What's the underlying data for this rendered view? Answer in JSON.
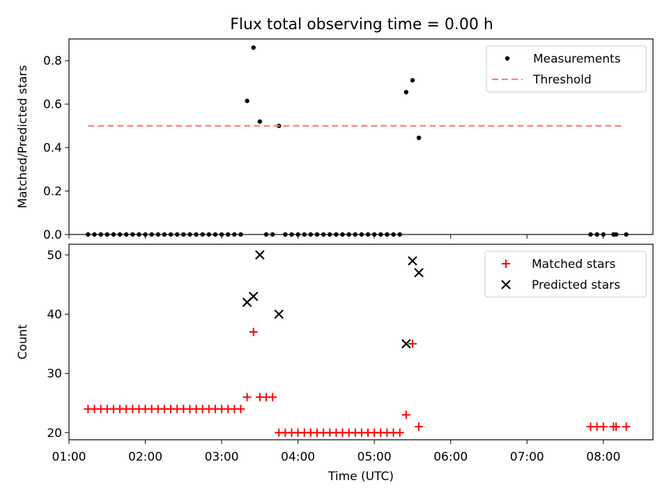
{
  "title": "Flux total observing time = 0.00 h",
  "colors": {
    "measurements": "#000000",
    "threshold": "#ff7f7f",
    "matched": "#ff0000",
    "predicted": "#000000"
  },
  "chart_data": [
    {
      "type": "scatter",
      "ylabel": "Matched/Predicted stars",
      "xlim_hours": [
        1.0,
        8.65
      ],
      "ylim": [
        0,
        0.9
      ],
      "yticks": [
        0.0,
        0.2,
        0.4,
        0.6,
        0.8
      ],
      "ytick_labels": [
        "0.0",
        "0.2",
        "0.4",
        "0.6",
        "0.8"
      ],
      "legend_position": "upper right",
      "series": [
        {
          "name": "Measurements",
          "marker": "dot",
          "points": [
            [
              "01:15",
              0
            ],
            [
              "01:20",
              0
            ],
            [
              "01:25",
              0
            ],
            [
              "01:30",
              0
            ],
            [
              "01:35",
              0
            ],
            [
              "01:40",
              0
            ],
            [
              "01:45",
              0
            ],
            [
              "01:50",
              0
            ],
            [
              "01:55",
              0
            ],
            [
              "02:00",
              0
            ],
            [
              "02:05",
              0
            ],
            [
              "02:10",
              0
            ],
            [
              "02:15",
              0
            ],
            [
              "02:20",
              0
            ],
            [
              "02:25",
              0
            ],
            [
              "02:30",
              0
            ],
            [
              "02:35",
              0
            ],
            [
              "02:40",
              0
            ],
            [
              "02:45",
              0
            ],
            [
              "02:50",
              0
            ],
            [
              "02:55",
              0
            ],
            [
              "03:00",
              0
            ],
            [
              "03:05",
              0
            ],
            [
              "03:10",
              0
            ],
            [
              "03:15",
              0
            ],
            [
              "03:20",
              0.615
            ],
            [
              "03:25",
              0.86
            ],
            [
              "03:30",
              0.52
            ],
            [
              "03:35",
              0
            ],
            [
              "03:40",
              0
            ],
            [
              "03:45",
              0.5
            ],
            [
              "03:50",
              0
            ],
            [
              "03:55",
              0
            ],
            [
              "04:00",
              0
            ],
            [
              "04:05",
              0
            ],
            [
              "04:10",
              0
            ],
            [
              "04:15",
              0
            ],
            [
              "04:20",
              0
            ],
            [
              "04:25",
              0
            ],
            [
              "04:30",
              0
            ],
            [
              "04:35",
              0
            ],
            [
              "04:40",
              0
            ],
            [
              "04:45",
              0
            ],
            [
              "04:50",
              0
            ],
            [
              "04:55",
              0
            ],
            [
              "05:00",
              0
            ],
            [
              "05:05",
              0
            ],
            [
              "05:10",
              0
            ],
            [
              "05:15",
              0
            ],
            [
              "05:20",
              0
            ],
            [
              "05:25",
              0.655
            ],
            [
              "05:30",
              0.71
            ],
            [
              "05:35",
              0.445
            ],
            [
              "07:50",
              0
            ],
            [
              "07:55",
              0
            ],
            [
              "08:00",
              0
            ],
            [
              "08:08",
              0
            ],
            [
              "08:10",
              0
            ],
            [
              "08:18",
              0
            ]
          ]
        },
        {
          "name": "Threshold",
          "style": "dashed",
          "points": [
            [
              "01:15",
              0.5
            ],
            [
              "08:15",
              0.5
            ]
          ]
        }
      ]
    },
    {
      "type": "scatter",
      "xlabel": "Time (UTC)",
      "ylabel": "Count",
      "xlim_hours": [
        1.0,
        8.65
      ],
      "ylim": [
        18.8,
        51.8
      ],
      "yticks": [
        20,
        30,
        40,
        50
      ],
      "ytick_labels": [
        "20",
        "30",
        "40",
        "50"
      ],
      "xticks": [
        "01:00",
        "02:00",
        "03:00",
        "04:00",
        "05:00",
        "06:00",
        "07:00",
        "08:00"
      ],
      "legend_position": "upper right",
      "series": [
        {
          "name": "Matched stars",
          "marker": "plus",
          "points": [
            [
              "01:15",
              24
            ],
            [
              "01:20",
              24
            ],
            [
              "01:25",
              24
            ],
            [
              "01:30",
              24
            ],
            [
              "01:35",
              24
            ],
            [
              "01:40",
              24
            ],
            [
              "01:45",
              24
            ],
            [
              "01:50",
              24
            ],
            [
              "01:55",
              24
            ],
            [
              "02:00",
              24
            ],
            [
              "02:05",
              24
            ],
            [
              "02:10",
              24
            ],
            [
              "02:15",
              24
            ],
            [
              "02:20",
              24
            ],
            [
              "02:25",
              24
            ],
            [
              "02:30",
              24
            ],
            [
              "02:35",
              24
            ],
            [
              "02:40",
              24
            ],
            [
              "02:45",
              24
            ],
            [
              "02:50",
              24
            ],
            [
              "02:55",
              24
            ],
            [
              "03:00",
              24
            ],
            [
              "03:05",
              24
            ],
            [
              "03:10",
              24
            ],
            [
              "03:15",
              24
            ],
            [
              "03:20",
              26
            ],
            [
              "03:25",
              37
            ],
            [
              "03:30",
              26
            ],
            [
              "03:35",
              26
            ],
            [
              "03:40",
              26
            ],
            [
              "03:45",
              20
            ],
            [
              "03:50",
              20
            ],
            [
              "03:55",
              20
            ],
            [
              "04:00",
              20
            ],
            [
              "04:05",
              20
            ],
            [
              "04:10",
              20
            ],
            [
              "04:15",
              20
            ],
            [
              "04:20",
              20
            ],
            [
              "04:25",
              20
            ],
            [
              "04:30",
              20
            ],
            [
              "04:35",
              20
            ],
            [
              "04:40",
              20
            ],
            [
              "04:45",
              20
            ],
            [
              "04:50",
              20
            ],
            [
              "04:55",
              20
            ],
            [
              "05:00",
              20
            ],
            [
              "05:05",
              20
            ],
            [
              "05:10",
              20
            ],
            [
              "05:15",
              20
            ],
            [
              "05:20",
              20
            ],
            [
              "05:25",
              23
            ],
            [
              "05:30",
              35
            ],
            [
              "05:35",
              21
            ],
            [
              "07:50",
              21
            ],
            [
              "07:55",
              21
            ],
            [
              "08:00",
              21
            ],
            [
              "08:08",
              21
            ],
            [
              "08:10",
              21
            ],
            [
              "08:18",
              21
            ]
          ]
        },
        {
          "name": "Predicted stars",
          "marker": "x",
          "points": [
            [
              "03:20",
              42
            ],
            [
              "03:25",
              43
            ],
            [
              "03:30",
              50
            ],
            [
              "03:45",
              40
            ],
            [
              "05:25",
              35
            ],
            [
              "05:30",
              49
            ],
            [
              "05:35",
              47
            ]
          ]
        }
      ]
    }
  ]
}
